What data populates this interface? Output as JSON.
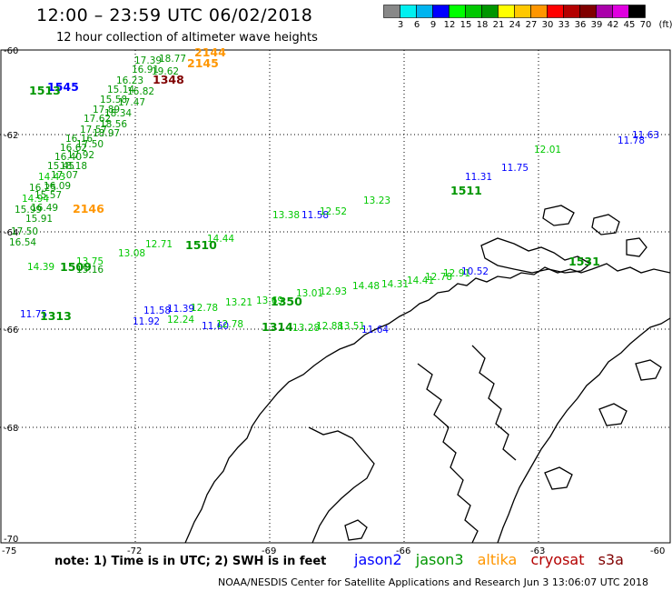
{
  "header": {
    "title": "12:00 – 23:59 UTC 06/02/2018",
    "subtitle": "12 hour collection of altimeter wave heights"
  },
  "legend": {
    "colors": [
      "#888888",
      "#00f0f0",
      "#00b4f0",
      "#0000ff",
      "#00ff00",
      "#00c800",
      "#009600",
      "#ffff00",
      "#ffc800",
      "#ff9600",
      "#ff0000",
      "#b40000",
      "#800000",
      "#aa00aa",
      "#e000e0",
      "#000000"
    ],
    "labels": [
      "3",
      "6",
      "9",
      "12",
      "15",
      "18",
      "21",
      "24",
      "27",
      "30",
      "33",
      "36",
      "39",
      "42",
      "45",
      "70",
      "(ft)"
    ]
  },
  "axes": {
    "lat_labels": [
      "-60",
      "-62",
      "-64",
      "-66",
      "-68",
      "-70"
    ],
    "lon_labels": [
      "-75",
      "-72",
      "-69",
      "-66",
      "-63",
      "-60"
    ]
  },
  "chart_data": {
    "type": "scatter",
    "units": "ft",
    "track_labels": [
      {
        "text": "2144",
        "color": "#ff9600"
      },
      {
        "text": "2145",
        "color": "#ff9600"
      },
      {
        "text": "2146",
        "color": "#ff9600"
      },
      {
        "text": "1348",
        "color": "#800000"
      },
      {
        "text": "1545",
        "color": "#0000ff"
      },
      {
        "text": "1513",
        "color": "#009600"
      },
      {
        "text": "1511",
        "color": "#009600"
      },
      {
        "text": "1510",
        "color": "#009600"
      },
      {
        "text": "1509",
        "color": "#009600"
      },
      {
        "text": "1350",
        "color": "#009600"
      },
      {
        "text": "1314",
        "color": "#009600"
      },
      {
        "text": "1313",
        "color": "#009600"
      },
      {
        "text": "1531",
        "color": "#009600"
      }
    ],
    "wave_heights": [
      {
        "v": "19.62",
        "c": "#009600"
      },
      {
        "v": "18.77",
        "c": "#009600"
      },
      {
        "v": "17.39",
        "c": "#009600"
      },
      {
        "v": "16.91",
        "c": "#009600"
      },
      {
        "v": "16.23",
        "c": "#009600"
      },
      {
        "v": "16.82",
        "c": "#009600"
      },
      {
        "v": "15.14",
        "c": "#009600"
      },
      {
        "v": "15.58",
        "c": "#009600"
      },
      {
        "v": "17.47",
        "c": "#009600"
      },
      {
        "v": "17.89",
        "c": "#009600"
      },
      {
        "v": "18.34",
        "c": "#009600"
      },
      {
        "v": "17.62",
        "c": "#009600"
      },
      {
        "v": "18.56",
        "c": "#009600"
      },
      {
        "v": "17.57",
        "c": "#009600"
      },
      {
        "v": "18.97",
        "c": "#009600"
      },
      {
        "v": "16.16",
        "c": "#009600"
      },
      {
        "v": "17.50",
        "c": "#009600"
      },
      {
        "v": "16.62",
        "c": "#009600"
      },
      {
        "v": "16.40",
        "c": "#009600"
      },
      {
        "v": "17.92",
        "c": "#009600"
      },
      {
        "v": "15.45",
        "c": "#009600"
      },
      {
        "v": "18.18",
        "c": "#009600"
      },
      {
        "v": "14.43",
        "c": "#00c800"
      },
      {
        "v": "17.07",
        "c": "#009600"
      },
      {
        "v": "16.25",
        "c": "#009600"
      },
      {
        "v": "16.09",
        "c": "#009600"
      },
      {
        "v": "14.94",
        "c": "#00c800"
      },
      {
        "v": "15.57",
        "c": "#009600"
      },
      {
        "v": "15.99",
        "c": "#009600"
      },
      {
        "v": "16.49",
        "c": "#009600"
      },
      {
        "v": "15.91",
        "c": "#009600"
      },
      {
        "v": "17.50",
        "c": "#009600"
      },
      {
        "v": "16.54",
        "c": "#009600"
      },
      {
        "v": "14.39",
        "c": "#00c800"
      },
      {
        "v": "15.16",
        "c": "#009600"
      },
      {
        "v": "11.58",
        "c": "#0000ff"
      },
      {
        "v": "11.31",
        "c": "#0000ff"
      },
      {
        "v": "11.75",
        "c": "#0000ff"
      },
      {
        "v": "11.78",
        "c": "#0000ff"
      },
      {
        "v": "11.63",
        "c": "#0000ff"
      },
      {
        "v": "10.52",
        "c": "#0000ff"
      },
      {
        "v": "11.75",
        "c": "#0000ff"
      },
      {
        "v": "11.58",
        "c": "#0000ff"
      },
      {
        "v": "11.39",
        "c": "#0000ff"
      },
      {
        "v": "11.92",
        "c": "#0000ff"
      },
      {
        "v": "11.60",
        "c": "#0000ff"
      },
      {
        "v": "11.64",
        "c": "#0000ff"
      },
      {
        "v": "13.38",
        "c": "#00c800"
      },
      {
        "v": "13.23",
        "c": "#00c800"
      },
      {
        "v": "12.52",
        "c": "#00c800"
      },
      {
        "v": "12.01",
        "c": "#00c800"
      },
      {
        "v": "13.75",
        "c": "#00c800"
      },
      {
        "v": "13.08",
        "c": "#00c800"
      },
      {
        "v": "12.71",
        "c": "#00c800"
      },
      {
        "v": "14.44",
        "c": "#00c800"
      },
      {
        "v": "12.78",
        "c": "#00c800"
      },
      {
        "v": "13.21",
        "c": "#00c800"
      },
      {
        "v": "13.69",
        "c": "#00c800"
      },
      {
        "v": "13.01",
        "c": "#00c800"
      },
      {
        "v": "12.93",
        "c": "#00c800"
      },
      {
        "v": "14.48",
        "c": "#00c800"
      },
      {
        "v": "14.31",
        "c": "#00c800"
      },
      {
        "v": "14.41",
        "c": "#00c800"
      },
      {
        "v": "12.78",
        "c": "#00c800"
      },
      {
        "v": "12.91",
        "c": "#00c800"
      },
      {
        "v": "12.24",
        "c": "#00c800"
      },
      {
        "v": "12.78",
        "c": "#00c800"
      },
      {
        "v": "13.28",
        "c": "#00c800"
      },
      {
        "v": "12.88",
        "c": "#00c800"
      },
      {
        "v": "13.51",
        "c": "#00c800"
      }
    ]
  },
  "footer": {
    "note": "note: 1) Time is in UTC; 2) SWH is in feet",
    "satellites": [
      {
        "name": "jason2",
        "color": "#0000ff"
      },
      {
        "name": "jason3",
        "color": "#009600"
      },
      {
        "name": "altika",
        "color": "#ff9600"
      },
      {
        "name": "cryosat",
        "color": "#b40000"
      },
      {
        "name": "s3a",
        "color": "#800000"
      }
    ],
    "credit": "NOAA/NESDIS Center for Satellite Applications and Research   Jun  3 13:06:07 UTC 2018"
  }
}
